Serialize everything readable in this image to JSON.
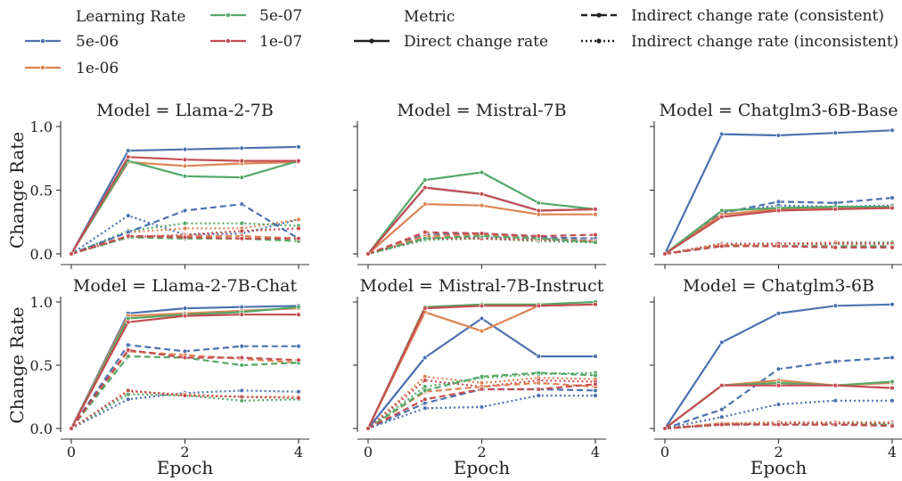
{
  "legend": {
    "lr_title": "Learning Rate",
    "lr_items": [
      {
        "label": "5e-06",
        "color": "#4c72b0"
      },
      {
        "label": "1e-06",
        "color": "#dd8452"
      },
      {
        "label": "5e-07",
        "color": "#55a868"
      },
      {
        "label": "1e-07",
        "color": "#c44e52"
      }
    ],
    "metric_title": "Metric",
    "metric_items": [
      {
        "label": "Direct change rate",
        "style": "solid"
      },
      {
        "label": "Indirect change rate (consistent)",
        "style": "dashed"
      },
      {
        "label": "Indirect change rate (inconsistent)",
        "style": "dotted"
      }
    ]
  },
  "chart_data": {
    "type": "line",
    "xlabel": "Epoch",
    "ylabel": "Change Rate",
    "xlim": [
      0,
      4
    ],
    "ylim": [
      0,
      1.0
    ],
    "xticks": [
      "0",
      "2",
      "4"
    ],
    "yticks": [
      "0.0",
      "0.5",
      "1.0"
    ],
    "x": [
      0,
      1,
      2,
      3,
      4
    ],
    "colors": {
      "5e-06": "#4c72b0",
      "1e-06": "#dd8452",
      "5e-07": "#55a868",
      "1e-07": "#c44e52"
    },
    "panels": [
      {
        "title": "Model = Llama-2-7B",
        "series": [
          {
            "lr": "5e-06",
            "metric": "Direct change rate",
            "values": [
              0.0,
              0.81,
              0.82,
              0.83,
              0.84
            ]
          },
          {
            "lr": "1e-06",
            "metric": "Direct change rate",
            "values": [
              0.0,
              0.72,
              0.69,
              0.71,
              0.72
            ]
          },
          {
            "lr": "5e-07",
            "metric": "Direct change rate",
            "values": [
              0.0,
              0.73,
              0.61,
              0.6,
              0.73
            ]
          },
          {
            "lr": "1e-07",
            "metric": "Direct change rate",
            "values": [
              0.0,
              0.76,
              0.74,
              0.73,
              0.73
            ]
          },
          {
            "lr": "5e-06",
            "metric": "Indirect change rate (consistent)",
            "values": [
              0.0,
              0.17,
              0.34,
              0.39,
              0.12
            ]
          },
          {
            "lr": "1e-06",
            "metric": "Indirect change rate (consistent)",
            "values": [
              0.0,
              0.14,
              0.14,
              0.14,
              0.12
            ]
          },
          {
            "lr": "5e-07",
            "metric": "Indirect change rate (consistent)",
            "values": [
              0.0,
              0.13,
              0.12,
              0.12,
              0.1
            ]
          },
          {
            "lr": "1e-07",
            "metric": "Indirect change rate (consistent)",
            "values": [
              0.0,
              0.14,
              0.13,
              0.12,
              0.12
            ]
          },
          {
            "lr": "5e-06",
            "metric": "Indirect change rate (inconsistent)",
            "values": [
              0.0,
              0.3,
              0.15,
              0.16,
              0.27
            ]
          },
          {
            "lr": "1e-06",
            "metric": "Indirect change rate (inconsistent)",
            "values": [
              0.0,
              0.17,
              0.2,
              0.2,
              0.27
            ]
          },
          {
            "lr": "5e-07",
            "metric": "Indirect change rate (inconsistent)",
            "values": [
              0.0,
              0.18,
              0.24,
              0.24,
              0.22
            ]
          },
          {
            "lr": "1e-07",
            "metric": "Indirect change rate (inconsistent)",
            "values": [
              0.0,
              0.13,
              0.15,
              0.18,
              0.2
            ]
          }
        ]
      },
      {
        "title": "Model = Mistral-7B",
        "series": [
          {
            "lr": "5e-06",
            "metric": "Direct change rate",
            "values": [
              0.0,
              0.52,
              0.47,
              0.34,
              0.35
            ]
          },
          {
            "lr": "1e-06",
            "metric": "Direct change rate",
            "values": [
              0.0,
              0.39,
              0.38,
              0.31,
              0.31
            ]
          },
          {
            "lr": "5e-07",
            "metric": "Direct change rate",
            "values": [
              0.0,
              0.58,
              0.64,
              0.4,
              0.35
            ]
          },
          {
            "lr": "1e-07",
            "metric": "Direct change rate",
            "values": [
              0.0,
              0.52,
              0.47,
              0.34,
              0.35
            ]
          },
          {
            "lr": "5e-06",
            "metric": "Indirect change rate (consistent)",
            "values": [
              0.0,
              0.15,
              0.16,
              0.13,
              0.12
            ]
          },
          {
            "lr": "1e-06",
            "metric": "Indirect change rate (consistent)",
            "values": [
              0.0,
              0.14,
              0.15,
              0.12,
              0.1
            ]
          },
          {
            "lr": "5e-07",
            "metric": "Indirect change rate (consistent)",
            "values": [
              0.0,
              0.12,
              0.14,
              0.12,
              0.09
            ]
          },
          {
            "lr": "1e-07",
            "metric": "Indirect change rate (consistent)",
            "values": [
              0.0,
              0.17,
              0.16,
              0.14,
              0.15
            ]
          },
          {
            "lr": "5e-06",
            "metric": "Indirect change rate (inconsistent)",
            "values": [
              0.0,
              0.12,
              0.13,
              0.12,
              0.1
            ]
          },
          {
            "lr": "1e-06",
            "metric": "Indirect change rate (inconsistent)",
            "values": [
              0.0,
              0.13,
              0.12,
              0.11,
              0.1
            ]
          },
          {
            "lr": "5e-07",
            "metric": "Indirect change rate (inconsistent)",
            "values": [
              0.0,
              0.11,
              0.12,
              0.1,
              0.09
            ]
          },
          {
            "lr": "1e-07",
            "metric": "Indirect change rate (inconsistent)",
            "values": [
              0.0,
              0.12,
              0.12,
              0.11,
              0.1
            ]
          }
        ]
      },
      {
        "title": "Model = Chatglm3-6B-Base",
        "series": [
          {
            "lr": "5e-06",
            "metric": "Direct change rate",
            "values": [
              0.0,
              0.94,
              0.93,
              0.95,
              0.97
            ]
          },
          {
            "lr": "1e-06",
            "metric": "Direct change rate",
            "values": [
              0.0,
              0.31,
              0.35,
              0.36,
              0.36
            ]
          },
          {
            "lr": "5e-07",
            "metric": "Direct change rate",
            "values": [
              0.0,
              0.34,
              0.36,
              0.37,
              0.37
            ]
          },
          {
            "lr": "1e-07",
            "metric": "Direct change rate",
            "values": [
              0.0,
              0.29,
              0.34,
              0.35,
              0.36
            ]
          },
          {
            "lr": "5e-06",
            "metric": "Indirect change rate (consistent)",
            "values": [
              0.0,
              0.32,
              0.41,
              0.4,
              0.44
            ]
          },
          {
            "lr": "1e-06",
            "metric": "Indirect change rate (consistent)",
            "values": [
              0.0,
              0.07,
              0.06,
              0.06,
              0.06
            ]
          },
          {
            "lr": "5e-07",
            "metric": "Indirect change rate (consistent)",
            "values": [
              0.0,
              0.06,
              0.06,
              0.06,
              0.06
            ]
          },
          {
            "lr": "1e-07",
            "metric": "Indirect change rate (consistent)",
            "values": [
              0.0,
              0.06,
              0.06,
              0.05,
              0.05
            ]
          },
          {
            "lr": "5e-06",
            "metric": "Indirect change rate (inconsistent)",
            "values": [
              0.0,
              0.33,
              0.38,
              0.37,
              0.38
            ]
          },
          {
            "lr": "1e-06",
            "metric": "Indirect change rate (inconsistent)",
            "values": [
              0.0,
              0.08,
              0.08,
              0.09,
              0.09
            ]
          },
          {
            "lr": "5e-07",
            "metric": "Indirect change rate (inconsistent)",
            "values": [
              0.0,
              0.07,
              0.08,
              0.08,
              0.09
            ]
          },
          {
            "lr": "1e-07",
            "metric": "Indirect change rate (inconsistent)",
            "values": [
              0.0,
              0.08,
              0.08,
              0.08,
              0.08
            ]
          }
        ]
      },
      {
        "title": "Model = Llama-2-7B-Chat",
        "series": [
          {
            "lr": "5e-06",
            "metric": "Direct change rate",
            "values": [
              0.0,
              0.91,
              0.95,
              0.96,
              0.97
            ]
          },
          {
            "lr": "1e-06",
            "metric": "Direct change rate",
            "values": [
              0.0,
              0.89,
              0.91,
              0.93,
              0.95
            ]
          },
          {
            "lr": "5e-07",
            "metric": "Direct change rate",
            "values": [
              0.0,
              0.87,
              0.9,
              0.92,
              0.96
            ]
          },
          {
            "lr": "1e-07",
            "metric": "Direct change rate",
            "values": [
              0.0,
              0.84,
              0.89,
              0.9,
              0.9
            ]
          },
          {
            "lr": "5e-06",
            "metric": "Indirect change rate (consistent)",
            "values": [
              0.0,
              0.66,
              0.61,
              0.65,
              0.65
            ]
          },
          {
            "lr": "1e-06",
            "metric": "Indirect change rate (consistent)",
            "values": [
              0.0,
              0.61,
              0.58,
              0.55,
              0.52
            ]
          },
          {
            "lr": "5e-07",
            "metric": "Indirect change rate (consistent)",
            "values": [
              0.0,
              0.57,
              0.56,
              0.5,
              0.52
            ]
          },
          {
            "lr": "1e-07",
            "metric": "Indirect change rate (consistent)",
            "values": [
              0.0,
              0.62,
              0.56,
              0.56,
              0.54
            ]
          },
          {
            "lr": "5e-06",
            "metric": "Indirect change rate (inconsistent)",
            "values": [
              0.0,
              0.23,
              0.28,
              0.3,
              0.29
            ]
          },
          {
            "lr": "1e-06",
            "metric": "Indirect change rate (inconsistent)",
            "values": [
              0.0,
              0.29,
              0.27,
              0.25,
              0.25
            ]
          },
          {
            "lr": "5e-07",
            "metric": "Indirect change rate (inconsistent)",
            "values": [
              0.0,
              0.27,
              0.26,
              0.22,
              0.23
            ]
          },
          {
            "lr": "1e-07",
            "metric": "Indirect change rate (inconsistent)",
            "values": [
              0.0,
              0.3,
              0.26,
              0.25,
              0.24
            ]
          }
        ]
      },
      {
        "title": "Model = Mistral-7B-Instruct",
        "series": [
          {
            "lr": "5e-06",
            "metric": "Direct change rate",
            "values": [
              0.0,
              0.56,
              0.87,
              0.57,
              0.57
            ]
          },
          {
            "lr": "1e-06",
            "metric": "Direct change rate",
            "values": [
              0.0,
              0.92,
              0.77,
              0.97,
              0.98
            ]
          },
          {
            "lr": "5e-07",
            "metric": "Direct change rate",
            "values": [
              0.0,
              0.96,
              0.98,
              0.98,
              1.0
            ]
          },
          {
            "lr": "1e-07",
            "metric": "Direct change rate",
            "values": [
              0.0,
              0.95,
              0.97,
              0.97,
              0.98
            ]
          },
          {
            "lr": "5e-06",
            "metric": "Indirect change rate (consistent)",
            "values": [
              0.0,
              0.2,
              0.31,
              0.31,
              0.3
            ]
          },
          {
            "lr": "1e-06",
            "metric": "Indirect change rate (consistent)",
            "values": [
              0.0,
              0.29,
              0.33,
              0.36,
              0.33
            ]
          },
          {
            "lr": "5e-07",
            "metric": "Indirect change rate (consistent)",
            "values": [
              0.0,
              0.3,
              0.41,
              0.44,
              0.42
            ]
          },
          {
            "lr": "1e-07",
            "metric": "Indirect change rate (consistent)",
            "values": [
              0.0,
              0.23,
              0.31,
              0.31,
              0.35
            ]
          },
          {
            "lr": "5e-06",
            "metric": "Indirect change rate (inconsistent)",
            "values": [
              0.0,
              0.16,
              0.17,
              0.26,
              0.26
            ]
          },
          {
            "lr": "1e-06",
            "metric": "Indirect change rate (inconsistent)",
            "values": [
              0.0,
              0.41,
              0.36,
              0.4,
              0.39
            ]
          },
          {
            "lr": "5e-07",
            "metric": "Indirect change rate (inconsistent)",
            "values": [
              0.0,
              0.33,
              0.4,
              0.43,
              0.44
            ]
          },
          {
            "lr": "1e-07",
            "metric": "Indirect change rate (inconsistent)",
            "values": [
              0.0,
              0.38,
              0.33,
              0.38,
              0.37
            ]
          }
        ]
      },
      {
        "title": "Model = Chatglm3-6B",
        "series": [
          {
            "lr": "5e-06",
            "metric": "Direct change rate",
            "values": [
              0.0,
              0.68,
              0.91,
              0.97,
              0.98
            ]
          },
          {
            "lr": "1e-06",
            "metric": "Direct change rate",
            "values": [
              0.0,
              0.34,
              0.38,
              0.34,
              0.36
            ]
          },
          {
            "lr": "5e-07",
            "metric": "Direct change rate",
            "values": [
              0.0,
              0.34,
              0.36,
              0.34,
              0.37
            ]
          },
          {
            "lr": "1e-07",
            "metric": "Direct change rate",
            "values": [
              0.0,
              0.34,
              0.34,
              0.34,
              0.32
            ]
          },
          {
            "lr": "5e-06",
            "metric": "Indirect change rate (consistent)",
            "values": [
              0.0,
              0.15,
              0.47,
              0.53,
              0.56
            ]
          },
          {
            "lr": "1e-06",
            "metric": "Indirect change rate (consistent)",
            "values": [
              0.0,
              0.04,
              0.03,
              0.03,
              0.03
            ]
          },
          {
            "lr": "5e-07",
            "metric": "Indirect change rate (consistent)",
            "values": [
              0.0,
              0.03,
              0.03,
              0.03,
              0.03
            ]
          },
          {
            "lr": "1e-07",
            "metric": "Indirect change rate (consistent)",
            "values": [
              0.0,
              0.03,
              0.03,
              0.03,
              0.02
            ]
          },
          {
            "lr": "5e-06",
            "metric": "Indirect change rate (inconsistent)",
            "values": [
              0.0,
              0.09,
              0.19,
              0.22,
              0.22
            ]
          },
          {
            "lr": "1e-06",
            "metric": "Indirect change rate (inconsistent)",
            "values": [
              0.0,
              0.04,
              0.05,
              0.05,
              0.05
            ]
          },
          {
            "lr": "5e-07",
            "metric": "Indirect change rate (inconsistent)",
            "values": [
              0.0,
              0.03,
              0.04,
              0.04,
              0.04
            ]
          },
          {
            "lr": "1e-07",
            "metric": "Indirect change rate (inconsistent)",
            "values": [
              0.0,
              0.03,
              0.04,
              0.04,
              0.04
            ]
          }
        ]
      }
    ]
  }
}
